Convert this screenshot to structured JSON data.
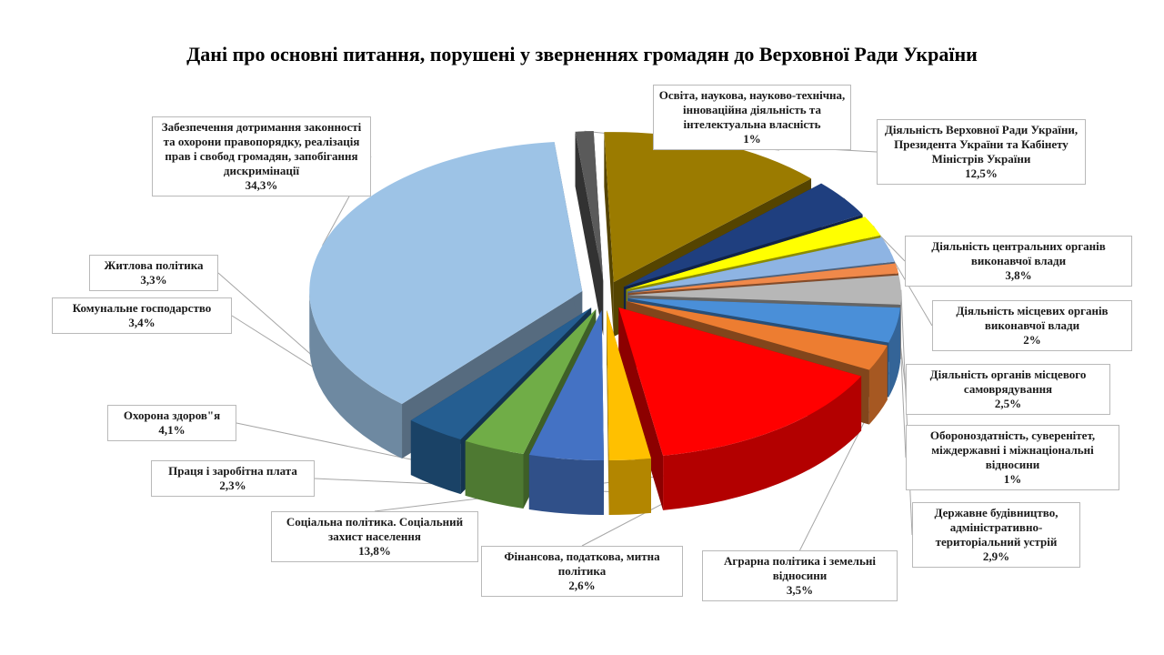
{
  "chart_data": {
    "type": "pie",
    "title": "Дані про основні питання, порушені у зверненнях громадян до Верховної Ради України",
    "slices": [
      {
        "label": "Діяльність Верховної Ради України, Президента України та Кабінету Міністрів України",
        "value": 12.5,
        "value_label": "12,5%",
        "color": "#9b7b00"
      },
      {
        "label": "Діяльність центральних органів виконавчої влади",
        "value": 3.8,
        "value_label": "3,8%",
        "color": "#1f3f7f"
      },
      {
        "label": "Діяльність місцевих органів виконавчої влади",
        "value": 2,
        "value_label": "2%",
        "color": "#ffff00"
      },
      {
        "label": "Діяльність органів місцевого самоврядування",
        "value": 2.5,
        "value_label": "2,5%",
        "color": "#8eb4e3"
      },
      {
        "label": "Обороноздатність, суверенітет, міждержавні і міжнаціональні відносини",
        "value": 1,
        "value_label": "1%",
        "color": "#f0894a"
      },
      {
        "label": "Державне будівництво, адміністративно-територіальний устрій",
        "value": 2.9,
        "value_label": "2,9%",
        "color": "#b7b7b7"
      },
      {
        "label": "Аграрна політика і земельні відносини",
        "value": 3.5,
        "value_label": "3,5%",
        "color": "#4a8fd8"
      },
      {
        "label": "Фінансова, податкова, митна політика",
        "value": 2.6,
        "value_label": "2,6%",
        "color": "#ed7d31"
      },
      {
        "label": "Соціальна політика. Соціальний захист населення",
        "value": 13.8,
        "value_label": "13,8%",
        "color": "#ff0000"
      },
      {
        "label": "Праця і заробітна плата",
        "value": 2.3,
        "value_label": "2,3%",
        "color": "#ffc000"
      },
      {
        "label": "Охорона здоров\"я",
        "value": 4.1,
        "value_label": "4,1%",
        "color": "#4472c4"
      },
      {
        "label": "Комунальне господарство",
        "value": 3.4,
        "value_label": "3,4%",
        "color": "#70ad47"
      },
      {
        "label": "Житлова політика",
        "value": 3.3,
        "value_label": "3,3%",
        "color": "#255e91"
      },
      {
        "label": "Забезпечення дотримання законності та охорони правопорядку, реалізація прав і свобод громадян, запобігання дискримінації",
        "value": 34.3,
        "value_label": "34,3%",
        "color": "#9dc3e6"
      },
      {
        "label": "Освіта, наукова, науково-технічна, інноваційна діяльність та інтелектуальна власність",
        "value": 1,
        "value_label": "1%",
        "color": "#5a5a5a"
      }
    ]
  }
}
